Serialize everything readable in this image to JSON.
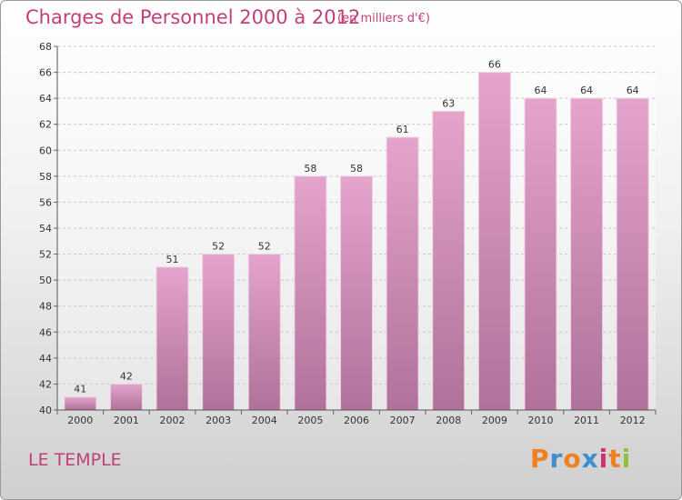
{
  "header": {
    "title": "Charges de Personnel 2000 à 2012",
    "subtitle": "(en milliers d'€)"
  },
  "footer": {
    "commune": "LE TEMPLE",
    "logo_text": "Proxiti"
  },
  "colors": {
    "title": "#c0407a",
    "bar_top": "#e4a4cb",
    "bar_bottom": "#b0719a",
    "logo": [
      "#f08020",
      "#3f8fd0",
      "#f08020",
      "#3f8fd0",
      "#d03070",
      "#f08020",
      "#8fc040"
    ]
  },
  "chart_data": {
    "type": "bar",
    "title": "Charges de Personnel 2000 à 2012",
    "subtitle": "(en milliers d'€)",
    "categories": [
      "2000",
      "2001",
      "2002",
      "2003",
      "2004",
      "2005",
      "2006",
      "2007",
      "2008",
      "2009",
      "2010",
      "2011",
      "2012"
    ],
    "values": [
      41,
      42,
      51,
      52,
      52,
      58,
      58,
      61,
      63,
      66,
      64,
      64,
      64
    ],
    "ylim": [
      40,
      68
    ],
    "yticks": [
      40,
      42,
      44,
      46,
      48,
      50,
      52,
      54,
      56,
      58,
      60,
      62,
      64,
      66,
      68
    ],
    "grid": true,
    "data_labels": true
  }
}
